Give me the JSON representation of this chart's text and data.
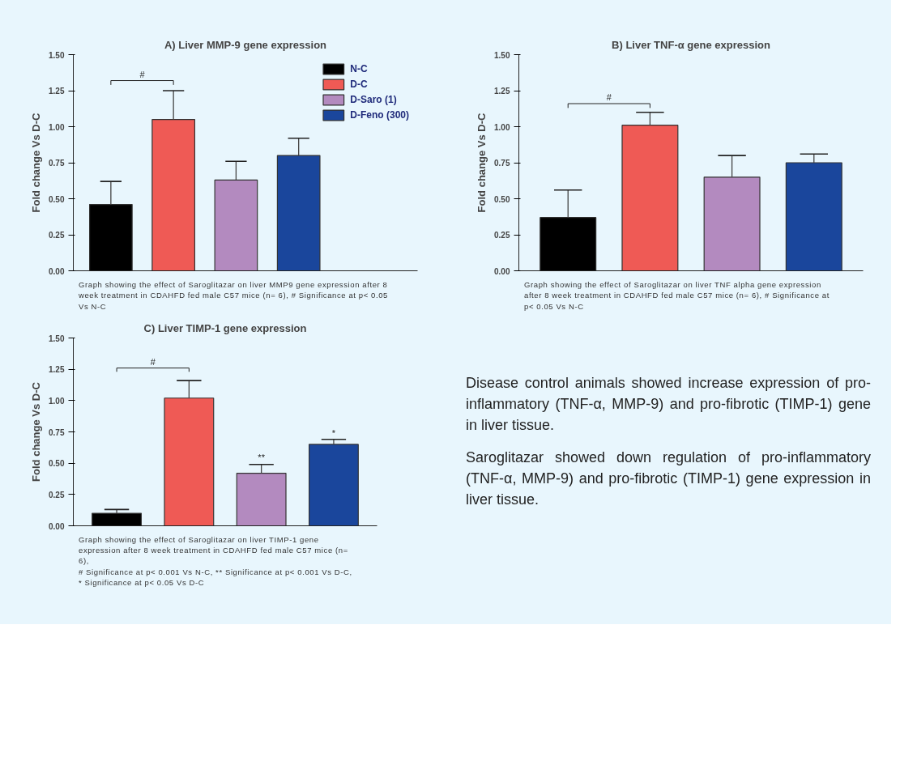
{
  "chart_data": [
    {
      "type": "bar",
      "title": "A) Liver MMP-9 gene expression",
      "ylabel": "Fold change Vs D-C",
      "categories": [
        null,
        null,
        null,
        null
      ],
      "series": [
        {
          "name": "N-C",
          "color": "#000000",
          "values": [
            0.46,
            null,
            null,
            null
          ],
          "errors": [
            [
              0.46,
              0.62
            ],
            null,
            null,
            null
          ]
        },
        {
          "name": "D-C",
          "color": "#ef5a55",
          "values": [
            null,
            1.05,
            null,
            null
          ],
          "errors": [
            null,
            [
              1.05,
              1.25
            ],
            null,
            null
          ]
        },
        {
          "name": "D-Saro (1)",
          "color": "#b38abf",
          "values": [
            null,
            null,
            0.63,
            null
          ],
          "errors": [
            null,
            null,
            [
              0.63,
              0.76
            ],
            null
          ]
        },
        {
          "name": "D-Feno (300)",
          "color": "#1a469c",
          "values": [
            null,
            null,
            null,
            0.8
          ],
          "errors": [
            null,
            null,
            null,
            [
              0.8,
              0.92
            ]
          ]
        }
      ],
      "stacked": true,
      "legend": "top right",
      "ylim": [
        0,
        1.5
      ],
      "yticks": [
        {
          "value": 0,
          "label": "0.00"
        },
        {
          "value": 0.25,
          "label": "0.25"
        },
        {
          "value": 0.5,
          "label": "0.50"
        },
        {
          "value": 0.75,
          "label": "0.75"
        },
        {
          "value": 1,
          "label": "1.00"
        },
        {
          "value": 1.25,
          "label": "1.25"
        },
        {
          "value": 1.5,
          "label": "1.50"
        }
      ],
      "tick_labels": "y",
      "grid": false,
      "annotations": [
        "Graph showing the effect of Saroglitazar on liver MMP9 gene expression after 8 week treatment in CDAHFD fed male C57 mice (n= 6), # Significance at p< 0.05 Vs N-C",
        "#"
      ]
    },
    {
      "type": "bar",
      "title": "B) Liver TNF-α gene expression",
      "ylabel": "Fold change Vs D-C",
      "categories": [
        null,
        null,
        null,
        null
      ],
      "values": [
        0.37,
        1.01,
        0.65,
        0.75
      ],
      "colors": [
        "#000000",
        "#ef5a55",
        "#b38abf",
        "#1a469c"
      ],
      "errors": [
        [
          0.37,
          0.56
        ],
        [
          1.01,
          1.1
        ],
        [
          0.65,
          0.8
        ],
        [
          0.75,
          0.81
        ]
      ],
      "ylim": [
        0,
        1.5
      ],
      "yticks": [
        {
          "value": 0,
          "label": "0.00"
        },
        {
          "value": 0.25,
          "label": "0.25"
        },
        {
          "value": 0.5,
          "label": "0.50"
        },
        {
          "value": 0.75,
          "label": "0.75"
        },
        {
          "value": 1,
          "label": "1.00"
        },
        {
          "value": 1.25,
          "label": "1.25"
        },
        {
          "value": 1.5,
          "label": "1.50"
        }
      ],
      "tick_labels": "y",
      "grid": false,
      "annotations": [
        "Graph showing the effect of Saroglitazar on liver TNF alpha gene expression after 8 week treatment in CDAHFD fed male C57 mice (n= 6), # Significance at p< 0.05 Vs N-C",
        "#"
      ]
    },
    {
      "type": "bar",
      "title": "C) Liver TIMP-1 gene expression",
      "ylabel": "Fold change Vs D-C",
      "categories": [
        null,
        null,
        null,
        null
      ],
      "values": [
        0.1,
        1.02,
        0.42,
        0.65
      ],
      "colors": [
        "#000000",
        "#ef5a55",
        "#b38abf",
        "#1a469c"
      ],
      "errors": [
        [
          0.1,
          0.13
        ],
        [
          1.02,
          1.16
        ],
        [
          0.42,
          0.49
        ],
        [
          0.65,
          0.69
        ]
      ],
      "ylim": [
        0,
        1.5
      ],
      "yticks": [
        {
          "value": 0,
          "label": "0.00"
        },
        {
          "value": 0.25,
          "label": "0.25"
        },
        {
          "value": 0.5,
          "label": "0.50"
        },
        {
          "value": 0.75,
          "label": "0.75"
        },
        {
          "value": 1,
          "label": "1.00"
        },
        {
          "value": 1.25,
          "label": "1.25"
        },
        {
          "value": 1.5,
          "label": "1.50"
        }
      ],
      "tick_labels": "y",
      "grid": false,
      "annotations": [
        "Graph showing the effect of Saroglitazar on liver TIMP-1 gene expression after 8 week treatment in CDAHFD fed male C57 mice (n= 6),",
        "# Significance at p< 0.001 Vs N-C, ** Significance at p< 0.001 Vs D-C,",
        "* Significance at p< 0.05 Vs D-C",
        "#",
        {
          "text": "**",
          "y": 0.5
        },
        {
          "text": "*",
          "y": 0.69
        }
      ]
    },
    {
      "type": "other",
      "annotations": [
        "Disease control animals showed increase expression of pro-inflammatory (TNF-α, MMP-9) and pro-fibrotic (TIMP-1) gene in liver tissue.",
        "Saroglitazar showed down regulation of pro-inflammatory (TNF-α, MMP-9) and pro-fibrotic (TIMP-1) gene expression in liver tissue."
      ]
    }
  ]
}
